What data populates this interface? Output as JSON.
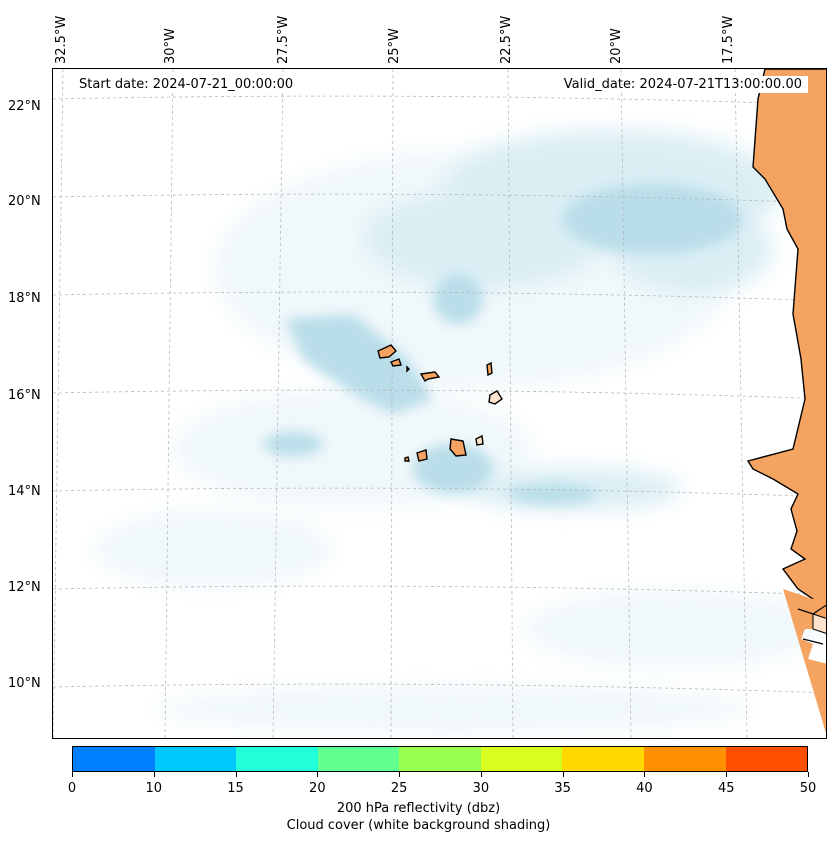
{
  "map": {
    "start_date": "Start date: 2024-07-21_00:00:00",
    "valid_date": "Valid_date: 2024-07-21T13:00:00.00",
    "lon_labels": [
      "32.5°W",
      "30°W",
      "27.5°W",
      "25°W",
      "22.5°W",
      "20°W",
      "17.5°W"
    ],
    "lat_labels": [
      "22°N",
      "20°N",
      "18°N",
      "16°N",
      "14°N",
      "12°N",
      "10°N"
    ],
    "features": [
      "cape-verde-islands",
      "west-africa-coastline",
      "cloud-cover-shading"
    ],
    "colors": {
      "land": "#f4a460",
      "cloud": "#add8e6",
      "coast": "#000000",
      "grid": "#b0b0b0"
    }
  },
  "colorbar": {
    "ticks": [
      "0",
      "10",
      "15",
      "20",
      "25",
      "30",
      "35",
      "40",
      "45",
      "50"
    ],
    "colors": [
      "#0080ff",
      "#00c8ff",
      "#20ffd8",
      "#60ff90",
      "#98ff50",
      "#d8ff20",
      "#ffd800",
      "#ff9000",
      "#ff5000"
    ],
    "title_line1": "200 hPa reflectivity (dbz)",
    "title_line2": "Cloud cover (white background shading)"
  }
}
